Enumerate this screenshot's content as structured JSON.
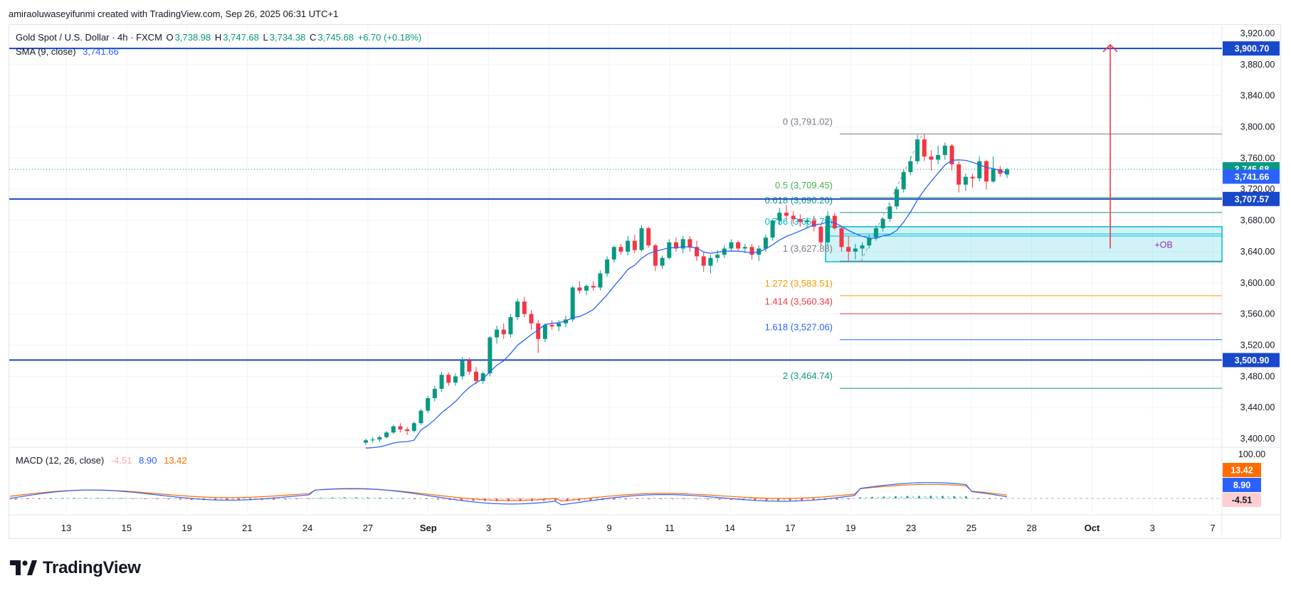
{
  "attribution": "amiraoluwaseyifunmi created with TradingView.com, Sep 26, 2025 06:31 UTC+1",
  "legend": {
    "symbol": "Gold Spot / U.S. Dollar · 4h · FXCM",
    "open_label": "O",
    "open": "3,738.98",
    "high_label": "H",
    "high": "3,747.68",
    "low_label": "L",
    "low": "3,734.38",
    "close_label": "C",
    "close": "3,745.68",
    "change": "+6.70 (+0.18%)",
    "sma_label": "SMA (9, close)",
    "sma_value": "3,741.66",
    "macd_label": "MACD (12, 26, close)",
    "macd_hist": "-4.51",
    "macd_line": "8.90",
    "macd_signal": "13.42"
  },
  "brand": {
    "name": "TradingView",
    "icon": "tradingview-logo-icon"
  },
  "colors": {
    "up": "#089981",
    "down": "#f23645",
    "sma": "#2962ff",
    "level": "#1848cc",
    "ob": "#00bcd4",
    "arrow": "#f23645",
    "signal": "#ff6d00"
  },
  "chart_data": {
    "type": "candlestick",
    "symbol": "Gold Spot / U.S. Dollar",
    "timeframe": "4h",
    "ylim": [
      3390,
      3930
    ],
    "y_ticks": [
      "3,920.00",
      "3,880.00",
      "3,840.00",
      "3,800.00",
      "3,760.00",
      "3,720.00",
      "3,680.00",
      "3,640.00",
      "3,600.00",
      "3,560.00",
      "3,520.00",
      "3,480.00",
      "3,440.00",
      "3,400.00"
    ],
    "x_ticks": [
      "13",
      "15",
      "19",
      "21",
      "24",
      "27",
      "Sep",
      "3",
      "5",
      "9",
      "11",
      "14",
      "17",
      "19",
      "23",
      "25",
      "28",
      "Oct",
      "3",
      "7"
    ],
    "horizontal_levels": [
      {
        "price": 3900.7,
        "label": "3,900.70"
      },
      {
        "price": 3707.57,
        "label": "3,707.57"
      },
      {
        "price": 3500.9,
        "label": "3,500.90"
      }
    ],
    "price_tags": [
      {
        "price": 3745.68,
        "label": "3,745.68",
        "kind": "last"
      },
      {
        "price": 3741.66,
        "label": "3,741.66",
        "kind": "sma"
      }
    ],
    "fibonacci": [
      {
        "ratio": "0",
        "price": 3791.02,
        "label": "0 (3,791.02)",
        "color": "#787b86"
      },
      {
        "ratio": "0.5",
        "price": 3709.45,
        "label": "0.5 (3,709.45)",
        "color": "#4caf50"
      },
      {
        "ratio": "0.618",
        "price": 3690.2,
        "label": "0.618 (3,690.20)",
        "color": "#089981"
      },
      {
        "ratio": "0.786",
        "price": 3662.79,
        "label": "0.786 (3,662.79)",
        "color": "#00bcd4"
      },
      {
        "ratio": "1",
        "price": 3627.88,
        "label": "1 (3,627.88)",
        "color": "#787b86"
      },
      {
        "ratio": "1.272",
        "price": 3583.51,
        "label": "1.272 (3,583.51)",
        "color": "#ff9800"
      },
      {
        "ratio": "1.414",
        "price": 3560.34,
        "label": "1.414 (3,560.34)",
        "color": "#f23645"
      },
      {
        "ratio": "1.618",
        "price": 3527.06,
        "label": "1.618 (3,527.06)",
        "color": "#2962ff"
      },
      {
        "ratio": "2",
        "price": 3464.74,
        "label": "2 (3,464.74)",
        "color": "#089981"
      }
    ],
    "order_block": {
      "label": "+OB",
      "top": 3672,
      "bottom": 3627
    },
    "projection_arrow": {
      "from": 3644,
      "to": 3900
    },
    "candles": [
      [
        3395,
        3400,
        3392,
        3398
      ],
      [
        3398,
        3402,
        3395,
        3399
      ],
      [
        3399,
        3404,
        3396,
        3402
      ],
      [
        3402,
        3410,
        3400,
        3408
      ],
      [
        3408,
        3418,
        3406,
        3416
      ],
      [
        3416,
        3420,
        3408,
        3412
      ],
      [
        3412,
        3415,
        3405,
        3410
      ],
      [
        3410,
        3422,
        3408,
        3420
      ],
      [
        3420,
        3438,
        3418,
        3436
      ],
      [
        3436,
        3455,
        3433,
        3452
      ],
      [
        3452,
        3468,
        3448,
        3464
      ],
      [
        3464,
        3486,
        3460,
        3482
      ],
      [
        3482,
        3485,
        3468,
        3472
      ],
      [
        3472,
        3484,
        3468,
        3480
      ],
      [
        3480,
        3505,
        3476,
        3500
      ],
      [
        3500,
        3504,
        3482,
        3486
      ],
      [
        3486,
        3492,
        3470,
        3474
      ],
      [
        3474,
        3486,
        3470,
        3484
      ],
      [
        3484,
        3532,
        3480,
        3530
      ],
      [
        3530,
        3545,
        3522,
        3540
      ],
      [
        3540,
        3548,
        3528,
        3534
      ],
      [
        3534,
        3560,
        3530,
        3556
      ],
      [
        3556,
        3580,
        3552,
        3576
      ],
      [
        3576,
        3582,
        3556,
        3560
      ],
      [
        3560,
        3565,
        3540,
        3548
      ],
      [
        3548,
        3552,
        3510,
        3528
      ],
      [
        3528,
        3548,
        3524,
        3546
      ],
      [
        3546,
        3552,
        3540,
        3544
      ],
      [
        3544,
        3552,
        3538,
        3548
      ],
      [
        3548,
        3558,
        3543,
        3553
      ],
      [
        3553,
        3596,
        3550,
        3594
      ],
      [
        3594,
        3602,
        3586,
        3590
      ],
      [
        3590,
        3598,
        3584,
        3596
      ],
      [
        3596,
        3602,
        3590,
        3594
      ],
      [
        3594,
        3616,
        3590,
        3612
      ],
      [
        3612,
        3634,
        3608,
        3630
      ],
      [
        3630,
        3648,
        3626,
        3646
      ],
      [
        3646,
        3650,
        3636,
        3640
      ],
      [
        3640,
        3660,
        3635,
        3654
      ],
      [
        3654,
        3662,
        3638,
        3642
      ],
      [
        3642,
        3674,
        3640,
        3670
      ],
      [
        3670,
        3672,
        3645,
        3648
      ],
      [
        3648,
        3650,
        3615,
        3622
      ],
      [
        3622,
        3635,
        3618,
        3632
      ],
      [
        3632,
        3656,
        3630,
        3652
      ],
      [
        3652,
        3658,
        3640,
        3644
      ],
      [
        3644,
        3660,
        3638,
        3656
      ],
      [
        3656,
        3660,
        3640,
        3646
      ],
      [
        3646,
        3654,
        3628,
        3634
      ],
      [
        3634,
        3640,
        3614,
        3622
      ],
      [
        3622,
        3636,
        3612,
        3632
      ],
      [
        3632,
        3642,
        3626,
        3636
      ],
      [
        3636,
        3648,
        3632,
        3644
      ],
      [
        3644,
        3656,
        3640,
        3652
      ],
      [
        3652,
        3654,
        3640,
        3644
      ],
      [
        3644,
        3650,
        3638,
        3646
      ],
      [
        3646,
        3650,
        3630,
        3636
      ],
      [
        3636,
        3648,
        3628,
        3644
      ],
      [
        3644,
        3662,
        3640,
        3658
      ],
      [
        3658,
        3682,
        3654,
        3680
      ],
      [
        3680,
        3696,
        3674,
        3690
      ],
      [
        3690,
        3700,
        3680,
        3686
      ],
      [
        3686,
        3692,
        3676,
        3682
      ],
      [
        3682,
        3688,
        3672,
        3678
      ],
      [
        3678,
        3684,
        3670,
        3680
      ],
      [
        3680,
        3686,
        3666,
        3672
      ],
      [
        3672,
        3674,
        3648,
        3652
      ],
      [
        3652,
        3692,
        3648,
        3686
      ],
      [
        3686,
        3690,
        3668,
        3670
      ],
      [
        3670,
        3672,
        3640,
        3646
      ],
      [
        3646,
        3660,
        3628,
        3640
      ],
      [
        3640,
        3650,
        3630,
        3644
      ],
      [
        3644,
        3652,
        3634,
        3648
      ],
      [
        3648,
        3662,
        3644,
        3658
      ],
      [
        3658,
        3674,
        3654,
        3670
      ],
      [
        3670,
        3684,
        3666,
        3682
      ],
      [
        3682,
        3702,
        3678,
        3698
      ],
      [
        3698,
        3724,
        3694,
        3720
      ],
      [
        3720,
        3746,
        3716,
        3742
      ],
      [
        3742,
        3762,
        3738,
        3756
      ],
      [
        3756,
        3790,
        3752,
        3784
      ],
      [
        3784,
        3791,
        3756,
        3762
      ],
      [
        3762,
        3770,
        3744,
        3758
      ],
      [
        3758,
        3776,
        3752,
        3764
      ],
      [
        3764,
        3780,
        3758,
        3776
      ],
      [
        3776,
        3778,
        3744,
        3752
      ],
      [
        3752,
        3756,
        3716,
        3726
      ],
      [
        3726,
        3740,
        3718,
        3736
      ],
      [
        3736,
        3740,
        3722,
        3734
      ],
      [
        3734,
        3762,
        3730,
        3756
      ],
      [
        3756,
        3758,
        3720,
        3730
      ],
      [
        3730,
        3762,
        3728,
        3746
      ],
      [
        3746,
        3750,
        3736,
        3740
      ],
      [
        3738.98,
        3747.68,
        3734.38,
        3745.68
      ]
    ]
  }
}
